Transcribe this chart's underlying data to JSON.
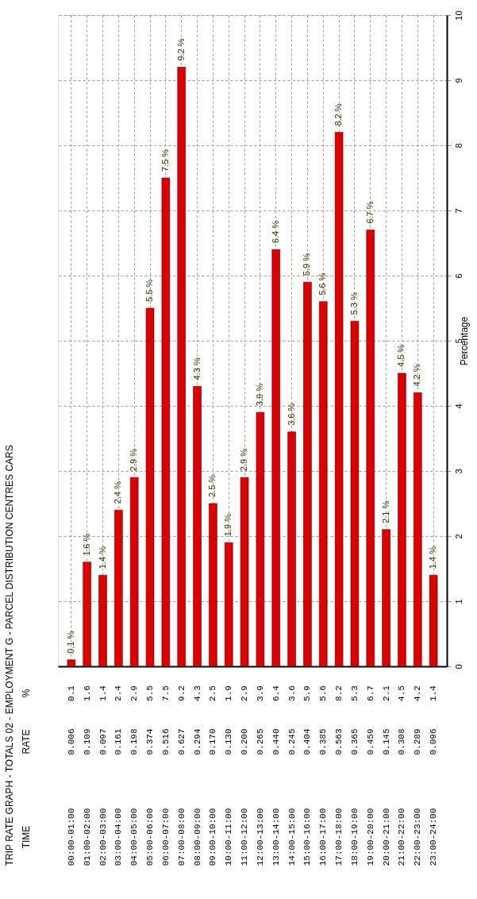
{
  "chart_data": {
    "type": "bar",
    "title": "TRIP RATE GRAPH - TOTALS  02 - EMPLOYMENT  G - PARCEL DISTRIBUTION CENTRES   CARS",
    "y2label": "Percentage",
    "categories": [
      "00:00-01:00",
      "01:00-02:00",
      "02:00-03:00",
      "03:00-04:00",
      "04:00-05:00",
      "05:00-06:00",
      "06:00-07:00",
      "07:00-08:00",
      "08:00-09:00",
      "09:00-10:00",
      "10:00-11:00",
      "11:00-12:00",
      "12:00-13:00",
      "13:00-14:00",
      "14:00-15:00",
      "15:00-16:00",
      "16:00-17:00",
      "17:00-18:00",
      "18:00-19:00",
      "19:00-20:00",
      "20:00-21:00",
      "21:00-22:00",
      "22:00-23:00",
      "23:00-24:00"
    ],
    "series": [
      {
        "axis": "y2",
        "color": "#dd0000",
        "values": [
          0.1,
          1.6,
          1.4,
          2.4,
          2.9,
          5.5,
          7.5,
          9.2,
          4.3,
          2.5,
          1.9,
          2.9,
          3.9,
          6.4,
          3.6,
          5.9,
          5.6,
          8.2,
          5.3,
          6.7,
          2.1,
          4.5,
          4.2,
          1.4
        ],
        "value_labels": [
          "0.1 %",
          "1.6 %",
          "1.4 %",
          "2.4 %",
          "2.9 %",
          "5.5 %",
          "7.5 %",
          "9.2 %",
          "4.3 %",
          "2.5 %",
          "1.9 %",
          "2.9 %",
          "3.9 %",
          "6.4 %",
          "3.6 %",
          "5.9 %",
          "5.6 %",
          "8.2 %",
          "5.3 %",
          "6.7 %",
          "2.1 %",
          "4.5 %",
          "4.2 %",
          "1.4 %"
        ]
      }
    ],
    "y2lim": [
      0,
      10
    ],
    "y2ticks": [
      0,
      1,
      2,
      3,
      4,
      5,
      6,
      7,
      8,
      9,
      10
    ],
    "grid": true,
    "annotations": [
      "TIME",
      "RATE",
      "%",
      "0.006",
      "0.109",
      "0.097",
      "0.161",
      "0.198",
      "0.374",
      "0.516",
      "0.627",
      "0.294",
      "0.170",
      "0.130",
      "0.200",
      "0.265",
      "0.440",
      "0.245",
      "0.404",
      "0.385",
      "0.563",
      "0.365",
      "0.459",
      "0.145",
      "0.308",
      "0.289",
      "0.096",
      "0.1",
      "1.6",
      "1.4",
      "2.4",
      "2.9",
      "5.5",
      "7.5",
      "9.2",
      "4.3",
      "2.5",
      "1.9",
      "2.9",
      "3.9",
      "6.4",
      "3.6",
      "5.9",
      "5.6",
      "8.2",
      "5.3",
      "6.7",
      "2.1",
      "4.5",
      "4.2",
      "1.4"
    ]
  }
}
